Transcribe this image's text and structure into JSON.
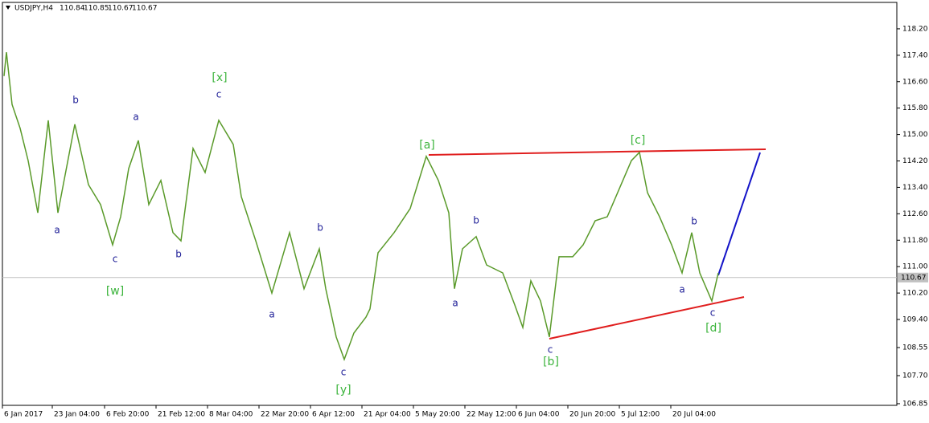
{
  "chart_data": {
    "type": "line",
    "symbol": "USDJPY,H4",
    "ohlc": [
      110.84,
      110.85,
      110.67,
      110.67
    ],
    "last_price": 110.67,
    "xlim": [
      3,
      1115
    ],
    "ylim": [
      106.8,
      119.0
    ],
    "xticks": [
      {
        "value": 3,
        "label": "6 Jan 2017"
      },
      {
        "value": 65,
        "label": "23 Jan 04:00"
      },
      {
        "value": 130,
        "label": "6 Feb 20:00"
      },
      {
        "value": 194,
        "label": "21 Feb 12:00"
      },
      {
        "value": 258,
        "label": "8 Mar 04:00"
      },
      {
        "value": 322,
        "label": "22 Mar 20:00"
      },
      {
        "value": 386,
        "label": "6 Apr 12:00"
      },
      {
        "value": 450,
        "label": "21 Apr 04:00"
      },
      {
        "value": 514,
        "label": "5 May 20:00"
      },
      {
        "value": 578,
        "label": "22 May 12:00"
      },
      {
        "value": 642,
        "label": "6 Jun 04:00"
      },
      {
        "value": 706,
        "label": "20 Jun 20:00"
      },
      {
        "value": 770,
        "label": "5 Jul 12:00"
      },
      {
        "value": 834,
        "label": "20 Jul 04:00"
      }
    ],
    "yticks": [
      106.85,
      {
        "value": 107.7,
        "label": "107.70"
      },
      108.55,
      {
        "value": 109.4,
        "label": "109.40"
      },
      {
        "value": 110.2,
        "label": "110.20"
      },
      {
        "value": 111,
        "label": "111.00"
      },
      {
        "value": 111.8,
        "label": "111.80"
      },
      {
        "value": 112.6,
        "label": "112.60"
      },
      {
        "value": 113.4,
        "label": "113.40"
      },
      {
        "value": 114.2,
        "label": "114.20"
      },
      {
        "value": 115,
        "label": "115.00"
      },
      {
        "value": 115.8,
        "label": "115.80"
      },
      {
        "value": 116.6,
        "label": "116.60"
      },
      {
        "value": 117.4,
        "label": "117.40"
      },
      {
        "value": 118.2,
        "label": "118.20"
      }
    ],
    "series": [
      {
        "name": "USDJPY",
        "color": "#5a9a2a",
        "x": [
          5,
          8,
          15,
          25,
          35,
          47,
          60,
          72,
          93,
          110,
          125,
          140,
          150,
          160,
          172,
          185,
          200,
          215,
          225,
          240,
          255,
          272,
          290,
          300,
          318,
          338,
          360,
          378,
          397,
          405,
          418,
          428,
          440,
          455,
          460,
          470,
          490,
          510,
          530,
          545,
          558,
          565,
          575,
          592,
          605,
          625,
          640,
          650,
          660,
          672,
          683,
          695,
          712,
          725,
          740,
          755,
          770,
          785,
          795,
          805,
          820,
          835,
          848,
          860,
          870,
          885,
          893
        ],
        "values": [
          116.77,
          117.49,
          115.91,
          115.19,
          114.21,
          112.63,
          115.43,
          112.63,
          115.31,
          113.48,
          112.88,
          111.66,
          112.51,
          113.97,
          114.82,
          112.88,
          113.61,
          112.03,
          111.78,
          114.58,
          113.85,
          115.43,
          114.7,
          113.12,
          111.78,
          110.2,
          112.03,
          110.33,
          111.54,
          110.33,
          108.87,
          108.19,
          108.99,
          109.47,
          109.72,
          111.42,
          112.03,
          112.76,
          114.34,
          113.61,
          112.63,
          110.33,
          111.54,
          111.91,
          111.05,
          110.81,
          109.84,
          109.16,
          110.57,
          109.96,
          108.87,
          111.3,
          111.3,
          111.66,
          112.39,
          112.51,
          113.36,
          114.21,
          114.46,
          113.24,
          112.51,
          111.66,
          110.81,
          112.03,
          110.81,
          109.96,
          110.81
        ]
      }
    ],
    "annotations": [
      {
        "text": "[x]",
        "color": "#3cb43c"
      },
      {
        "text": "c",
        "color": "#1c1c96"
      },
      {
        "text": "b",
        "color": "#1c1c96"
      },
      {
        "text": "a",
        "color": "#1c1c96"
      },
      {
        "text": "a",
        "color": "#1c1c96"
      },
      {
        "text": "c",
        "color": "#1c1c96"
      },
      {
        "text": "b",
        "color": "#1c1c96"
      },
      {
        "text": "[w]",
        "color": "#3cb43c"
      },
      {
        "text": "b",
        "color": "#1c1c96"
      },
      {
        "text": "a",
        "color": "#1c1c96"
      },
      {
        "text": "c",
        "color": "#1c1c96"
      },
      {
        "text": "[y]",
        "color": "#3cb43c"
      },
      {
        "text": "[a]",
        "color": "#3cb43c"
      },
      {
        "text": "b",
        "color": "#1c1c96"
      },
      {
        "text": "a",
        "color": "#1c1c96"
      },
      {
        "text": "c",
        "color": "#1c1c96"
      },
      {
        "text": "[b]",
        "color": "#3cb43c"
      },
      {
        "text": "[c]",
        "color": "#3cb43c"
      },
      {
        "text": "b",
        "color": "#1c1c96"
      },
      {
        "text": "a",
        "color": "#1c1c96"
      },
      {
        "text": "c",
        "color": "#1c1c96"
      },
      {
        "text": "[d]",
        "color": "#3cb43c"
      }
    ]
  }
}
